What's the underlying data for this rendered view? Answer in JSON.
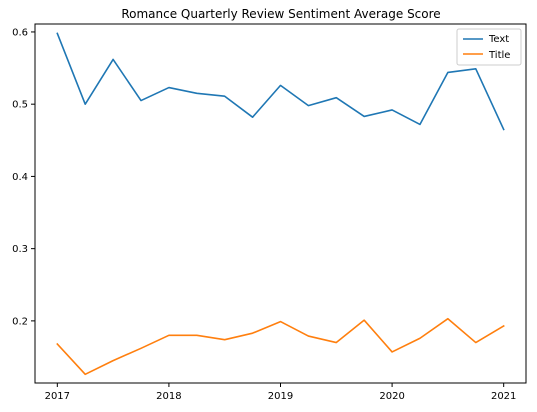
{
  "chart_data": {
    "type": "line",
    "title": "Romance Quarterly Review Sentiment Average Score",
    "xlabel": "",
    "ylabel": "",
    "x": [
      2017.0,
      2017.25,
      2017.5,
      2017.75,
      2018.0,
      2018.25,
      2018.5,
      2018.75,
      2019.0,
      2019.25,
      2019.5,
      2019.75,
      2020.0,
      2020.25,
      2020.5,
      2020.75,
      2021.0
    ],
    "series": [
      {
        "name": "Text",
        "color": "#1f77b4",
        "values": [
          0.598,
          0.5,
          0.562,
          0.505,
          0.523,
          0.515,
          0.511,
          0.482,
          0.526,
          0.498,
          0.509,
          0.483,
          0.492,
          0.472,
          0.544,
          0.549,
          0.465
        ]
      },
      {
        "name": "Title",
        "color": "#ff7f0e",
        "values": [
          0.168,
          0.126,
          0.145,
          0.162,
          0.18,
          0.18,
          0.174,
          0.183,
          0.199,
          0.179,
          0.17,
          0.201,
          0.157,
          0.176,
          0.203,
          0.17,
          0.193
        ]
      }
    ],
    "xlim": [
      2016.8,
      2021.2
    ],
    "ylim": [
      0.114,
      0.611
    ],
    "xticks": [
      2017,
      2018,
      2019,
      2020,
      2021
    ],
    "xtick_labels": [
      "2017",
      "2018",
      "2019",
      "2020",
      "2021"
    ],
    "yticks": [
      0.2,
      0.3,
      0.4,
      0.5,
      0.6
    ],
    "ytick_labels": [
      "0.2",
      "0.3",
      "0.4",
      "0.5",
      "0.6"
    ],
    "grid": false,
    "legend_position": "top-right"
  }
}
